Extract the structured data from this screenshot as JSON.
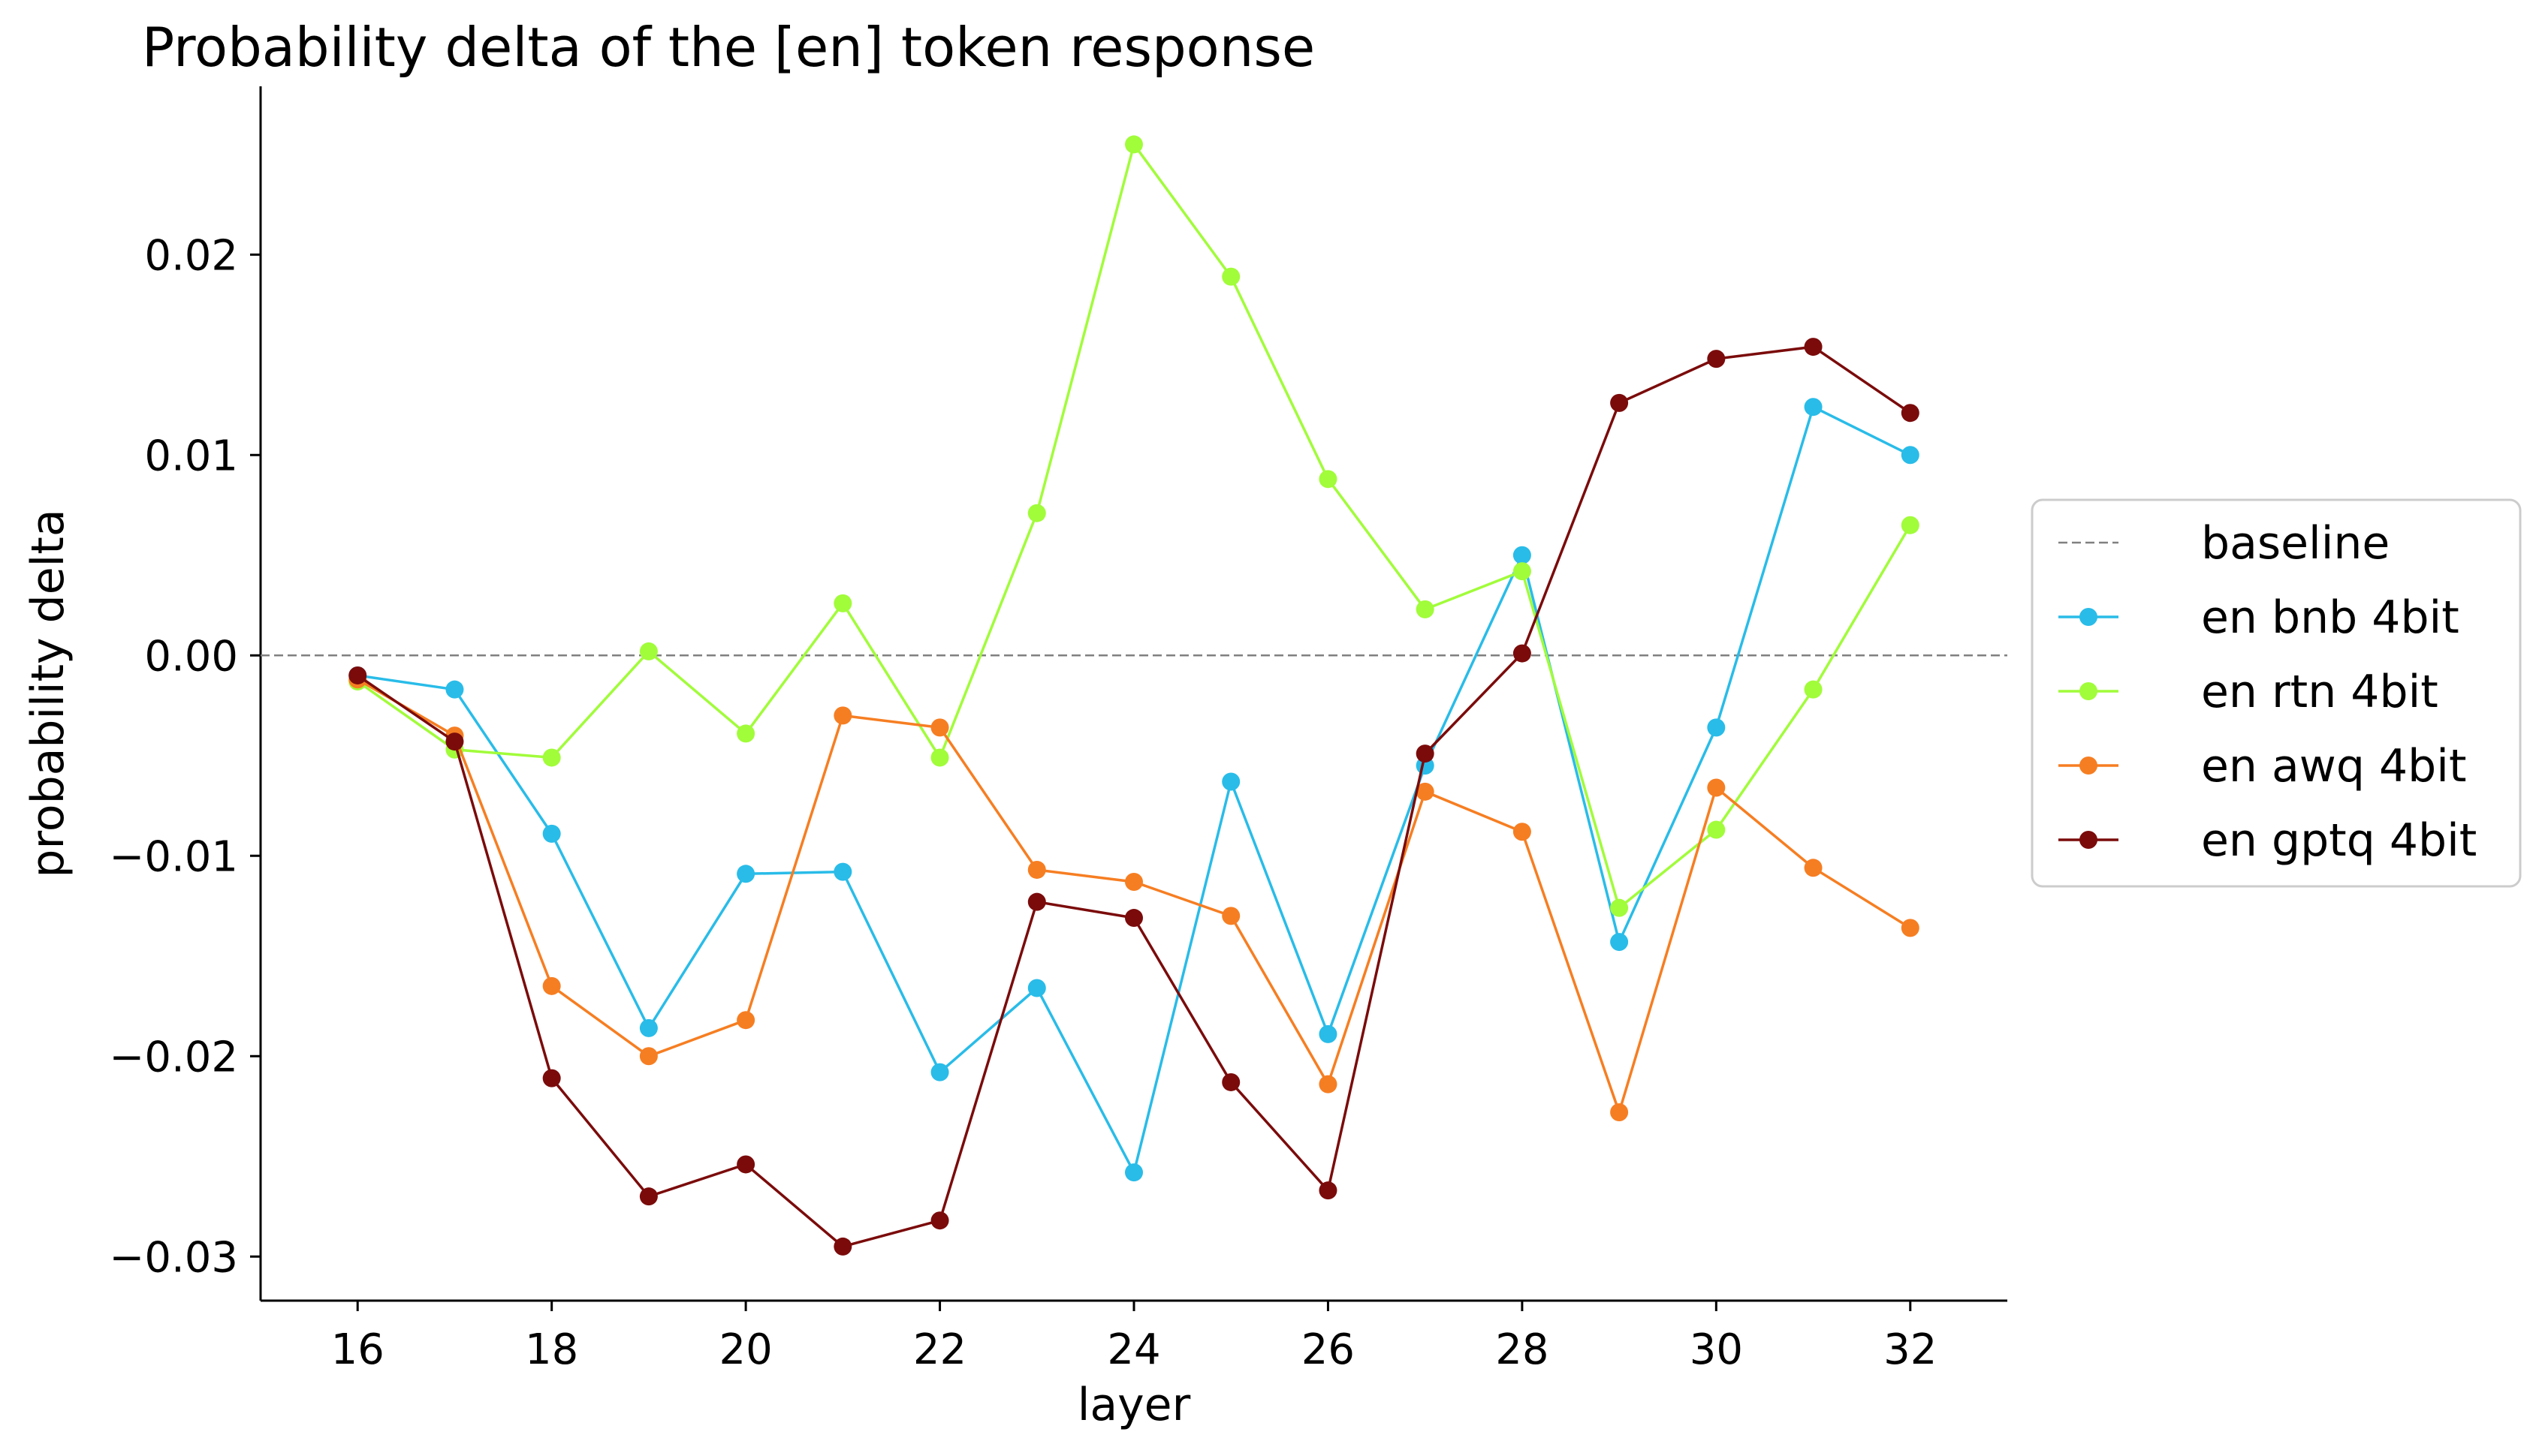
{
  "chart_data": {
    "type": "line",
    "title": "Probability delta of the [en] token response",
    "xlabel": "layer",
    "ylabel": "probability delta",
    "x": [
      16,
      17,
      18,
      19,
      20,
      21,
      22,
      23,
      24,
      25,
      26,
      27,
      28,
      29,
      30,
      31,
      32
    ],
    "xlim": [
      15,
      33
    ],
    "ylim": [
      -0.0322,
      0.0284
    ],
    "x_ticks": [
      16,
      18,
      20,
      22,
      24,
      26,
      28,
      30,
      32
    ],
    "x_tick_labels": [
      "16",
      "18",
      "20",
      "22",
      "24",
      "26",
      "28",
      "30",
      "32"
    ],
    "y_ticks": [
      -0.03,
      -0.02,
      -0.01,
      0.0,
      0.01,
      0.02
    ],
    "y_tick_labels": [
      "−0.03",
      "−0.02",
      "−0.01",
      "0.00",
      "0.01",
      "0.02"
    ],
    "grid": false,
    "legend_position": "right, outside",
    "baseline": {
      "name": "baseline",
      "value": 0.0,
      "color": "#808080",
      "style": "dashed"
    },
    "series": [
      {
        "name": "en bnb 4bit",
        "color": "#29BCE8",
        "values": [
          -0.001,
          -0.0017,
          -0.0089,
          -0.0186,
          -0.0109,
          -0.0108,
          -0.0208,
          -0.0166,
          -0.0258,
          -0.0063,
          -0.0189,
          -0.0055,
          0.005,
          -0.0143,
          -0.0036,
          0.0124,
          0.01
        ]
      },
      {
        "name": "en rtn 4bit",
        "color": "#A1FC3A",
        "values": [
          -0.0013,
          -0.0047,
          -0.0051,
          0.0002,
          -0.0039,
          0.0026,
          -0.0051,
          0.0071,
          0.0255,
          0.0189,
          0.0088,
          0.0023,
          0.0042,
          -0.0126,
          -0.0087,
          -0.0017,
          0.0065
        ]
      },
      {
        "name": "en awq 4bit",
        "color": "#F67E22",
        "values": [
          -0.0012,
          -0.004,
          -0.0165,
          -0.02,
          -0.0182,
          -0.003,
          -0.0036,
          -0.0107,
          -0.0113,
          -0.013,
          -0.0214,
          -0.0068,
          -0.0088,
          -0.0228,
          -0.0066,
          -0.0106,
          -0.0136
        ]
      },
      {
        "name": "en gptq 4bit",
        "color": "#7B0B0B",
        "values": [
          -0.001,
          -0.0043,
          -0.0211,
          -0.027,
          -0.0254,
          -0.0295,
          -0.0282,
          -0.0123,
          -0.0131,
          -0.0213,
          -0.0267,
          -0.0049,
          0.0001,
          0.0126,
          0.0148,
          0.0154,
          0.0121
        ]
      }
    ]
  }
}
